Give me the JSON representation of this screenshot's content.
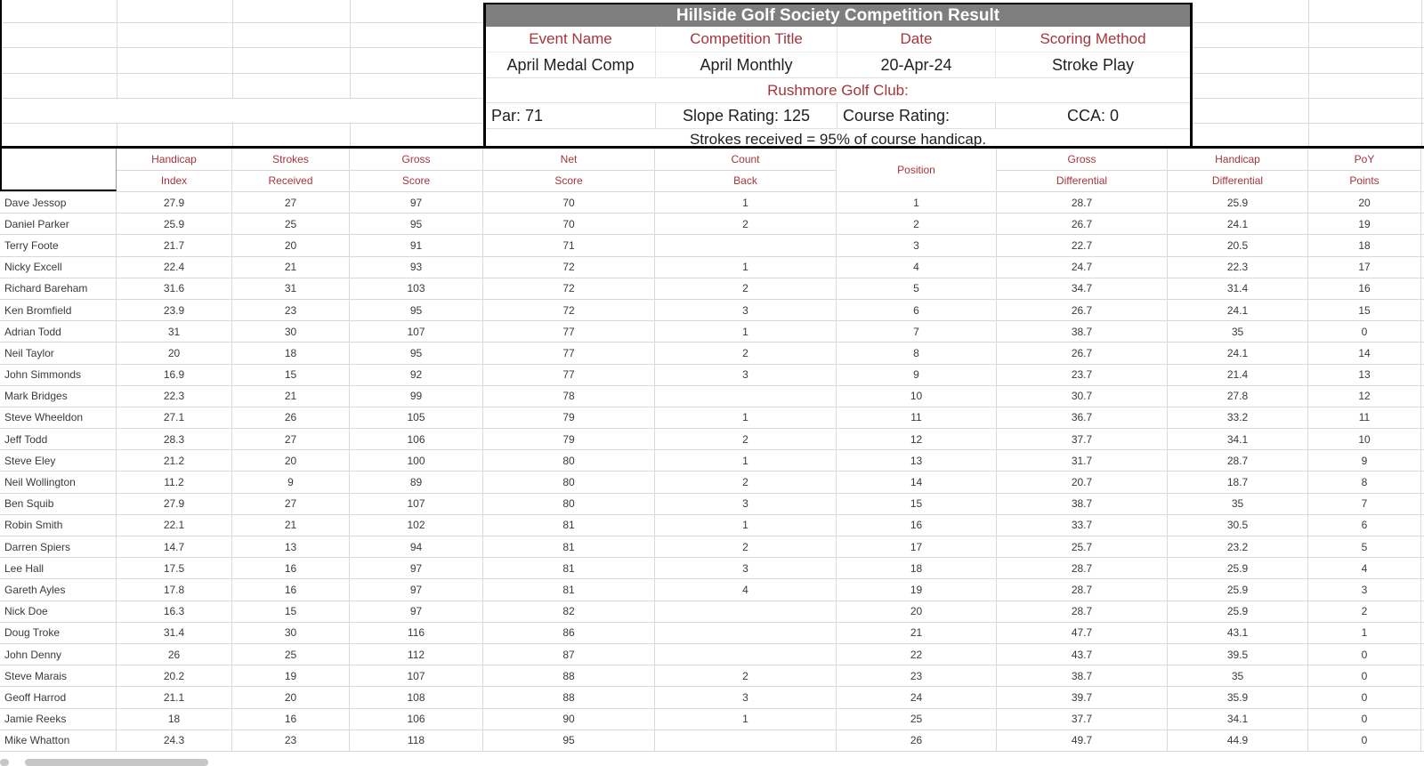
{
  "header_block": {
    "title": "Hillside Golf Society Competition Result",
    "field_labels": [
      "Event Name",
      "Competition Title",
      "Date",
      "Scoring Method"
    ],
    "field_values": [
      "April Medal Comp",
      "April Monthly",
      "20-Apr-24",
      "Stroke Play"
    ],
    "club_line": "Rushmore Golf Club:",
    "course_facts": [
      "Par: 71",
      "Slope Rating: 125",
      "Course Rating:",
      "CCA: 0"
    ],
    "note": "Strokes received = 95% of course handicap."
  },
  "results_table": {
    "column_headers": [
      {
        "line1": "",
        "line2": ""
      },
      {
        "line1": "Handicap",
        "line2": "Index"
      },
      {
        "line1": "Strokes",
        "line2": "Received"
      },
      {
        "line1": "Gross",
        "line2": "Score"
      },
      {
        "line1": "Net",
        "line2": "Score"
      },
      {
        "line1": "Count",
        "line2": "Back"
      },
      {
        "merged": "Position"
      },
      {
        "line1": "Gross",
        "line2": "Differential"
      },
      {
        "line1": "Handicap",
        "line2": "Differential"
      },
      {
        "line1": "PoY",
        "line2": "Points"
      }
    ],
    "row_key_order": [
      "name",
      "handicap_index",
      "strokes_received",
      "gross_score",
      "net_score",
      "count_back",
      "position",
      "gross_differential",
      "handicap_differential",
      "poy_points"
    ],
    "rows": [
      {
        "name": "Dave Jessop",
        "handicap_index": "27.9",
        "strokes_received": "27",
        "gross_score": "97",
        "net_score": "70",
        "count_back": "1",
        "position": "1",
        "gross_differential": "28.7",
        "handicap_differential": "25.9",
        "poy_points": "20"
      },
      {
        "name": "Daniel Parker",
        "handicap_index": "25.9",
        "strokes_received": "25",
        "gross_score": "95",
        "net_score": "70",
        "count_back": "2",
        "position": "2",
        "gross_differential": "26.7",
        "handicap_differential": "24.1",
        "poy_points": "19"
      },
      {
        "name": "Terry Foote",
        "handicap_index": "21.7",
        "strokes_received": "20",
        "gross_score": "91",
        "net_score": "71",
        "count_back": "",
        "position": "3",
        "gross_differential": "22.7",
        "handicap_differential": "20.5",
        "poy_points": "18"
      },
      {
        "name": "Nicky Excell",
        "handicap_index": "22.4",
        "strokes_received": "21",
        "gross_score": "93",
        "net_score": "72",
        "count_back": "1",
        "position": "4",
        "gross_differential": "24.7",
        "handicap_differential": "22.3",
        "poy_points": "17"
      },
      {
        "name": "Richard Bareham",
        "handicap_index": "31.6",
        "strokes_received": "31",
        "gross_score": "103",
        "net_score": "72",
        "count_back": "2",
        "position": "5",
        "gross_differential": "34.7",
        "handicap_differential": "31.4",
        "poy_points": "16"
      },
      {
        "name": "Ken Bromfield",
        "handicap_index": "23.9",
        "strokes_received": "23",
        "gross_score": "95",
        "net_score": "72",
        "count_back": "3",
        "position": "6",
        "gross_differential": "26.7",
        "handicap_differential": "24.1",
        "poy_points": "15"
      },
      {
        "name": "Adrian Todd",
        "handicap_index": "31",
        "strokes_received": "30",
        "gross_score": "107",
        "net_score": "77",
        "count_back": "1",
        "position": "7",
        "gross_differential": "38.7",
        "handicap_differential": "35",
        "poy_points": "0"
      },
      {
        "name": "Neil Taylor",
        "handicap_index": "20",
        "strokes_received": "18",
        "gross_score": "95",
        "net_score": "77",
        "count_back": "2",
        "position": "8",
        "gross_differential": "26.7",
        "handicap_differential": "24.1",
        "poy_points": "14"
      },
      {
        "name": "John Simmonds",
        "handicap_index": "16.9",
        "strokes_received": "15",
        "gross_score": "92",
        "net_score": "77",
        "count_back": "3",
        "position": "9",
        "gross_differential": "23.7",
        "handicap_differential": "21.4",
        "poy_points": "13"
      },
      {
        "name": "Mark Bridges",
        "handicap_index": "22.3",
        "strokes_received": "21",
        "gross_score": "99",
        "net_score": "78",
        "count_back": "",
        "position": "10",
        "gross_differential": "30.7",
        "handicap_differential": "27.8",
        "poy_points": "12"
      },
      {
        "name": "Steve Wheeldon",
        "handicap_index": "27.1",
        "strokes_received": "26",
        "gross_score": "105",
        "net_score": "79",
        "count_back": "1",
        "position": "11",
        "gross_differential": "36.7",
        "handicap_differential": "33.2",
        "poy_points": "11"
      },
      {
        "name": "Jeff Todd",
        "handicap_index": "28.3",
        "strokes_received": "27",
        "gross_score": "106",
        "net_score": "79",
        "count_back": "2",
        "position": "12",
        "gross_differential": "37.7",
        "handicap_differential": "34.1",
        "poy_points": "10"
      },
      {
        "name": "Steve Eley",
        "handicap_index": "21.2",
        "strokes_received": "20",
        "gross_score": "100",
        "net_score": "80",
        "count_back": "1",
        "position": "13",
        "gross_differential": "31.7",
        "handicap_differential": "28.7",
        "poy_points": "9"
      },
      {
        "name": "Neil Wollington",
        "handicap_index": "11.2",
        "strokes_received": "9",
        "gross_score": "89",
        "net_score": "80",
        "count_back": "2",
        "position": "14",
        "gross_differential": "20.7",
        "handicap_differential": "18.7",
        "poy_points": "8"
      },
      {
        "name": "Ben Squib",
        "handicap_index": "27.9",
        "strokes_received": "27",
        "gross_score": "107",
        "net_score": "80",
        "count_back": "3",
        "position": "15",
        "gross_differential": "38.7",
        "handicap_differential": "35",
        "poy_points": "7"
      },
      {
        "name": "Robin Smith",
        "handicap_index": "22.1",
        "strokes_received": "21",
        "gross_score": "102",
        "net_score": "81",
        "count_back": "1",
        "position": "16",
        "gross_differential": "33.7",
        "handicap_differential": "30.5",
        "poy_points": "6"
      },
      {
        "name": "Darren Spiers",
        "handicap_index": "14.7",
        "strokes_received": "13",
        "gross_score": "94",
        "net_score": "81",
        "count_back": "2",
        "position": "17",
        "gross_differential": "25.7",
        "handicap_differential": "23.2",
        "poy_points": "5"
      },
      {
        "name": "Lee Hall",
        "handicap_index": "17.5",
        "strokes_received": "16",
        "gross_score": "97",
        "net_score": "81",
        "count_back": "3",
        "position": "18",
        "gross_differential": "28.7",
        "handicap_differential": "25.9",
        "poy_points": "4"
      },
      {
        "name": "Gareth Ayles",
        "handicap_index": "17.8",
        "strokes_received": "16",
        "gross_score": "97",
        "net_score": "81",
        "count_back": "4",
        "position": "19",
        "gross_differential": "28.7",
        "handicap_differential": "25.9",
        "poy_points": "3"
      },
      {
        "name": "Nick Doe",
        "handicap_index": "16.3",
        "strokes_received": "15",
        "gross_score": "97",
        "net_score": "82",
        "count_back": "",
        "position": "20",
        "gross_differential": "28.7",
        "handicap_differential": "25.9",
        "poy_points": "2"
      },
      {
        "name": "Doug Troke",
        "handicap_index": "31.4",
        "strokes_received": "30",
        "gross_score": "116",
        "net_score": "86",
        "count_back": "",
        "position": "21",
        "gross_differential": "47.7",
        "handicap_differential": "43.1",
        "poy_points": "1"
      },
      {
        "name": "John Denny",
        "handicap_index": "26",
        "strokes_received": "25",
        "gross_score": "112",
        "net_score": "87",
        "count_back": "",
        "position": "22",
        "gross_differential": "43.7",
        "handicap_differential": "39.5",
        "poy_points": "0"
      },
      {
        "name": "Steve Marais",
        "handicap_index": "20.2",
        "strokes_received": "19",
        "gross_score": "107",
        "net_score": "88",
        "count_back": "2",
        "position": "23",
        "gross_differential": "38.7",
        "handicap_differential": "35",
        "poy_points": "0"
      },
      {
        "name": "Geoff Harrod",
        "handicap_index": "21.1",
        "strokes_received": "20",
        "gross_score": "108",
        "net_score": "88",
        "count_back": "3",
        "position": "24",
        "gross_differential": "39.7",
        "handicap_differential": "35.9",
        "poy_points": "0"
      },
      {
        "name": "Jamie Reeks",
        "handicap_index": "18",
        "strokes_received": "16",
        "gross_score": "106",
        "net_score": "90",
        "count_back": "1",
        "position": "25",
        "gross_differential": "37.7",
        "handicap_differential": "34.1",
        "poy_points": "0"
      },
      {
        "name": "Mike Whatton",
        "handicap_index": "24.3",
        "strokes_received": "23",
        "gross_score": "118",
        "net_score": "95",
        "count_back": "",
        "position": "26",
        "gross_differential": "49.7",
        "handicap_differential": "44.9",
        "poy_points": "0"
      }
    ]
  },
  "colors": {
    "accent_red": "#a5353a",
    "title_bar_bg": "#7e7e7e",
    "grid_line": "#d9d9d9"
  }
}
